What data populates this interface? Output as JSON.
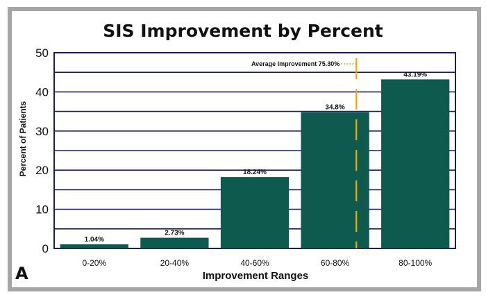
{
  "panel_label": "A",
  "colors": {
    "bar": "#0e5a4e",
    "grid": "#1b1b5e",
    "annotation": "#f2a900",
    "border": "#a6a6a6"
  },
  "chart_data": {
    "type": "bar",
    "title": "SIS Improvement by Percent",
    "xlabel": "Improvement Ranges",
    "ylabel": "Percent of Patients",
    "categories": [
      "0-20%",
      "20-40%",
      "40-60%",
      "60-80%",
      "80-100%"
    ],
    "values": [
      1.04,
      2.73,
      18.24,
      34.8,
      43.19
    ],
    "data_labels": [
      "1.04%",
      "2.73%",
      "18.24%",
      "34.8%",
      "43.19%"
    ],
    "ylim": [
      0,
      50
    ],
    "yticks": [
      0,
      10,
      20,
      30,
      40,
      50
    ],
    "grid": true,
    "annotation": {
      "label": "Average Improvement 75.30%",
      "x": 75.3
    }
  }
}
